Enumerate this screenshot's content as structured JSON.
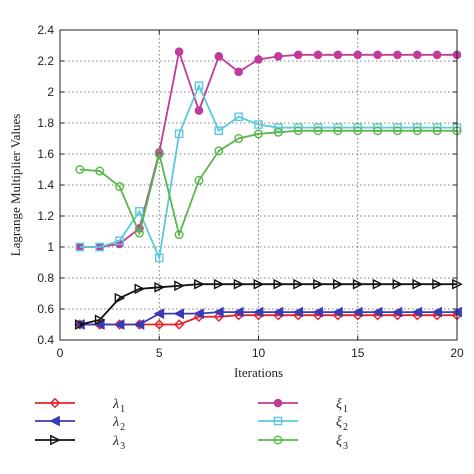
{
  "chart_data": {
    "type": "line",
    "title": "",
    "xlabel": "Iterations",
    "ylabel": "Lagrange Multiplier Values",
    "xlim": [
      0,
      20
    ],
    "ylim": [
      0.4,
      2.4
    ],
    "xticks": [
      "0",
      "5",
      "10",
      "15",
      "20"
    ],
    "yticks": [
      "0.4",
      "0.6",
      "0.8",
      "1",
      "1.2",
      "1.4",
      "1.6",
      "1.8",
      "2",
      "2.2",
      "2.4"
    ],
    "grid": "dotted, at tick positions",
    "legend_position": "below-plot",
    "x": [
      1,
      2,
      3,
      4,
      5,
      6,
      7,
      8,
      9,
      10,
      11,
      12,
      13,
      14,
      15,
      16,
      17,
      18,
      19,
      20
    ],
    "series": [
      {
        "name": "λ",
        "sub": "1",
        "color": "#e8202a",
        "marker": "diamond",
        "values": [
          0.5,
          0.5,
          0.5,
          0.5,
          0.5,
          0.5,
          0.55,
          0.55,
          0.56,
          0.56,
          0.56,
          0.56,
          0.56,
          0.56,
          0.56,
          0.56,
          0.56,
          0.56,
          0.56,
          0.56
        ]
      },
      {
        "name": "λ",
        "sub": "2",
        "color": "#3b3bb5",
        "marker": "triangle-left",
        "values": [
          0.5,
          0.5,
          0.5,
          0.5,
          0.57,
          0.57,
          0.57,
          0.58,
          0.58,
          0.58,
          0.58,
          0.58,
          0.58,
          0.58,
          0.58,
          0.58,
          0.58,
          0.58,
          0.58,
          0.58
        ]
      },
      {
        "name": "λ",
        "sub": "3",
        "color": "#111111",
        "marker": "triangle-right",
        "values": [
          0.5,
          0.53,
          0.67,
          0.73,
          0.74,
          0.75,
          0.76,
          0.76,
          0.76,
          0.76,
          0.76,
          0.76,
          0.76,
          0.76,
          0.76,
          0.76,
          0.76,
          0.76,
          0.76,
          0.76
        ]
      },
      {
        "name": "ξ",
        "sub": "1",
        "color": "#c13b9a",
        "marker": "circle-filled",
        "values": [
          1.0,
          1.0,
          1.02,
          1.12,
          1.61,
          2.26,
          1.88,
          2.23,
          2.13,
          2.21,
          2.23,
          2.24,
          2.24,
          2.24,
          2.24,
          2.24,
          2.24,
          2.24,
          2.24,
          2.24
        ]
      },
      {
        "name": "ξ",
        "sub": "2",
        "color": "#5cc8dc",
        "marker": "square",
        "values": [
          1.0,
          1.0,
          1.04,
          1.23,
          0.93,
          1.73,
          2.04,
          1.75,
          1.84,
          1.79,
          1.77,
          1.77,
          1.77,
          1.77,
          1.77,
          1.77,
          1.77,
          1.77,
          1.77,
          1.77
        ]
      },
      {
        "name": "ξ",
        "sub": "3",
        "color": "#56b848",
        "marker": "circle",
        "values": [
          1.5,
          1.49,
          1.39,
          1.09,
          1.6,
          1.08,
          1.43,
          1.62,
          1.7,
          1.73,
          1.74,
          1.75,
          1.75,
          1.75,
          1.75,
          1.75,
          1.75,
          1.75,
          1.75,
          1.75
        ]
      }
    ]
  }
}
